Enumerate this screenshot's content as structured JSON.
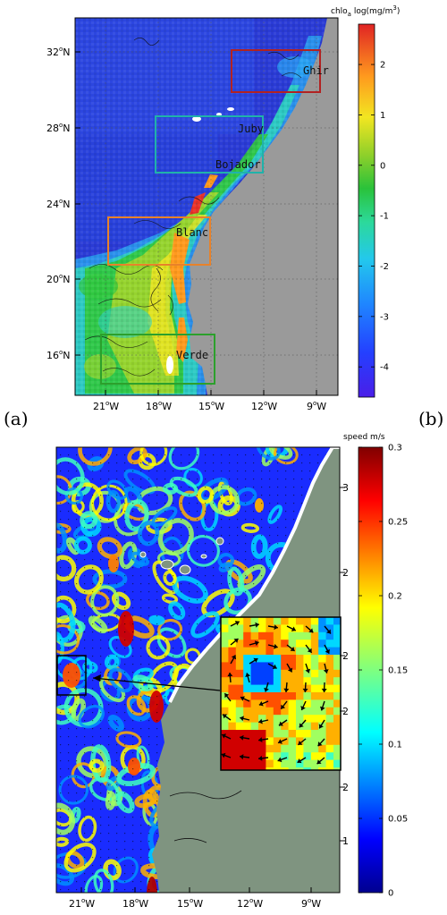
{
  "panels": [
    {
      "letter": "(a)",
      "colorbar": {
        "title_main": "chlo",
        "title_sub": "a",
        "title_rest": " log(mg/m",
        "title_sup": "3",
        "title_end": ")",
        "ticks": [
          "2",
          "1",
          "0",
          "-1",
          "-2",
          "-3",
          "-4"
        ],
        "range": [
          -4.6,
          2.8
        ]
      },
      "lat_labels": [
        "32",
        "28",
        "24",
        "20",
        "16"
      ],
      "lon_labels": [
        "21",
        "18",
        "15",
        "12",
        "9"
      ],
      "lat_unit": "N",
      "lon_unit": "W",
      "degree": "o",
      "regions": [
        {
          "name": "Ghir",
          "color": "#b22222"
        },
        {
          "name": "Juby",
          "color": "#e0e0e0"
        },
        {
          "name": "Bojador",
          "color": "#20b2aa"
        },
        {
          "name": "Blanc",
          "color": "#e8822a"
        },
        {
          "name": "Verde",
          "color": "#2ca02c"
        }
      ]
    },
    {
      "letter": "(b)",
      "colorbar": {
        "title": "speed m/s",
        "ticks": [
          "0.3",
          "0.25",
          "0.2",
          "0.15",
          "0.1",
          "0.05",
          "0"
        ],
        "range": [
          0,
          0.3
        ]
      },
      "lon_labels": [
        "21",
        "18",
        "15",
        "12",
        "9"
      ],
      "lon_unit": "W",
      "degree": "o",
      "lat_stubs": [
        "3",
        "2",
        "2",
        "2",
        "2",
        "1"
      ]
    }
  ],
  "colors": {
    "land_a": "#9a9a9a",
    "land_b": "#7f9480",
    "ocean_deep": "#2a3bd6",
    "colormap": [
      "#3b0fe0",
      "#2a55ff",
      "#29a8f5",
      "#2ee0c0",
      "#31c83d",
      "#a8d62a",
      "#f2e621",
      "#ff9a1e",
      "#e8322a",
      "#b80f0f"
    ]
  }
}
